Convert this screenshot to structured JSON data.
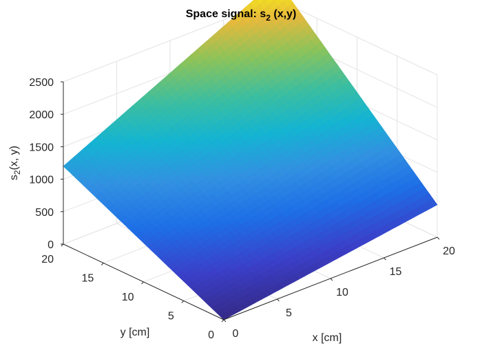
{
  "chart_data": {
    "type": "surface",
    "title_main": "Space signal: s",
    "title_sub": "2",
    "title_tail": " (x,y)",
    "xlabel": "x [cm]",
    "ylabel": "y [cm]",
    "zlabel_main": "s",
    "zlabel_sub": "2",
    "zlabel_tail": "(x, y)",
    "xlim": [
      0,
      20
    ],
    "ylim": [
      0,
      20
    ],
    "zlim": [
      0,
      2500
    ],
    "xticks": [
      "0",
      "5",
      "10",
      "15",
      "20"
    ],
    "yticks": [
      "0",
      "5",
      "10",
      "15",
      "20"
    ],
    "zticks": [
      "0",
      "500",
      "1000",
      "1500",
      "2000",
      "2500"
    ],
    "grid": true,
    "colormap": "parula",
    "surface_corners": [
      {
        "x": 0,
        "y": 0,
        "z": 0
      },
      {
        "x": 20,
        "y": 0,
        "z": 500
      },
      {
        "x": 0,
        "y": 20,
        "z": 1200
      },
      {
        "x": 20,
        "y": 20,
        "z": 2800
      }
    ]
  }
}
